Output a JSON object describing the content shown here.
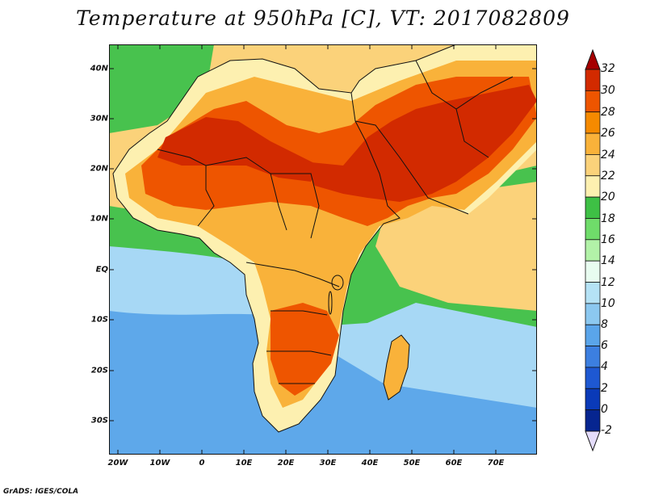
{
  "title": "Temperature at 950hPa [C], VT: 2017082809",
  "credit": "GrADS: IGES/COLA",
  "y_axis_labels": [
    "40N",
    "30N",
    "20N",
    "10N",
    "EQ",
    "10S",
    "20S",
    "30S"
  ],
  "x_axis_labels": [
    "20W",
    "10W",
    "0",
    "10E",
    "20E",
    "30E",
    "40E",
    "50E",
    "60E",
    "70E"
  ],
  "colorbar": {
    "labels": [
      "32",
      "30",
      "28",
      "26",
      "24",
      "22",
      "20",
      "18",
      "16",
      "14",
      "12",
      "10",
      "8",
      "6",
      "4",
      "2",
      "0",
      "-2"
    ],
    "colors": [
      "#a50000",
      "#d22a00",
      "#ee5500",
      "#f58a00",
      "#f9b23a",
      "#fbd27a",
      "#fdf0b0",
      "#3ec045",
      "#6fdc6a",
      "#b2f2a8",
      "#e8fcf0",
      "#b5e2f5",
      "#8cc8f0",
      "#5aa5ea",
      "#3c7fe0",
      "#1e58d2",
      "#0a3ab8",
      "#062590",
      "#e4dcfa"
    ]
  },
  "map": {
    "lon_range": [
      -22,
      80
    ],
    "lat_range": [
      -37,
      45
    ],
    "colors": {
      "ocean_south": "#5ea8ea",
      "ocean_mid": "#a7d8f5",
      "ocean_tropic": "#48c24e",
      "ocean_warm": "#fbd27a",
      "land_mild": "#fdf0b0",
      "land_warm": "#f9b23a",
      "land_hot": "#ee5500",
      "land_very_hot": "#d22a00",
      "border": "#111111"
    }
  }
}
